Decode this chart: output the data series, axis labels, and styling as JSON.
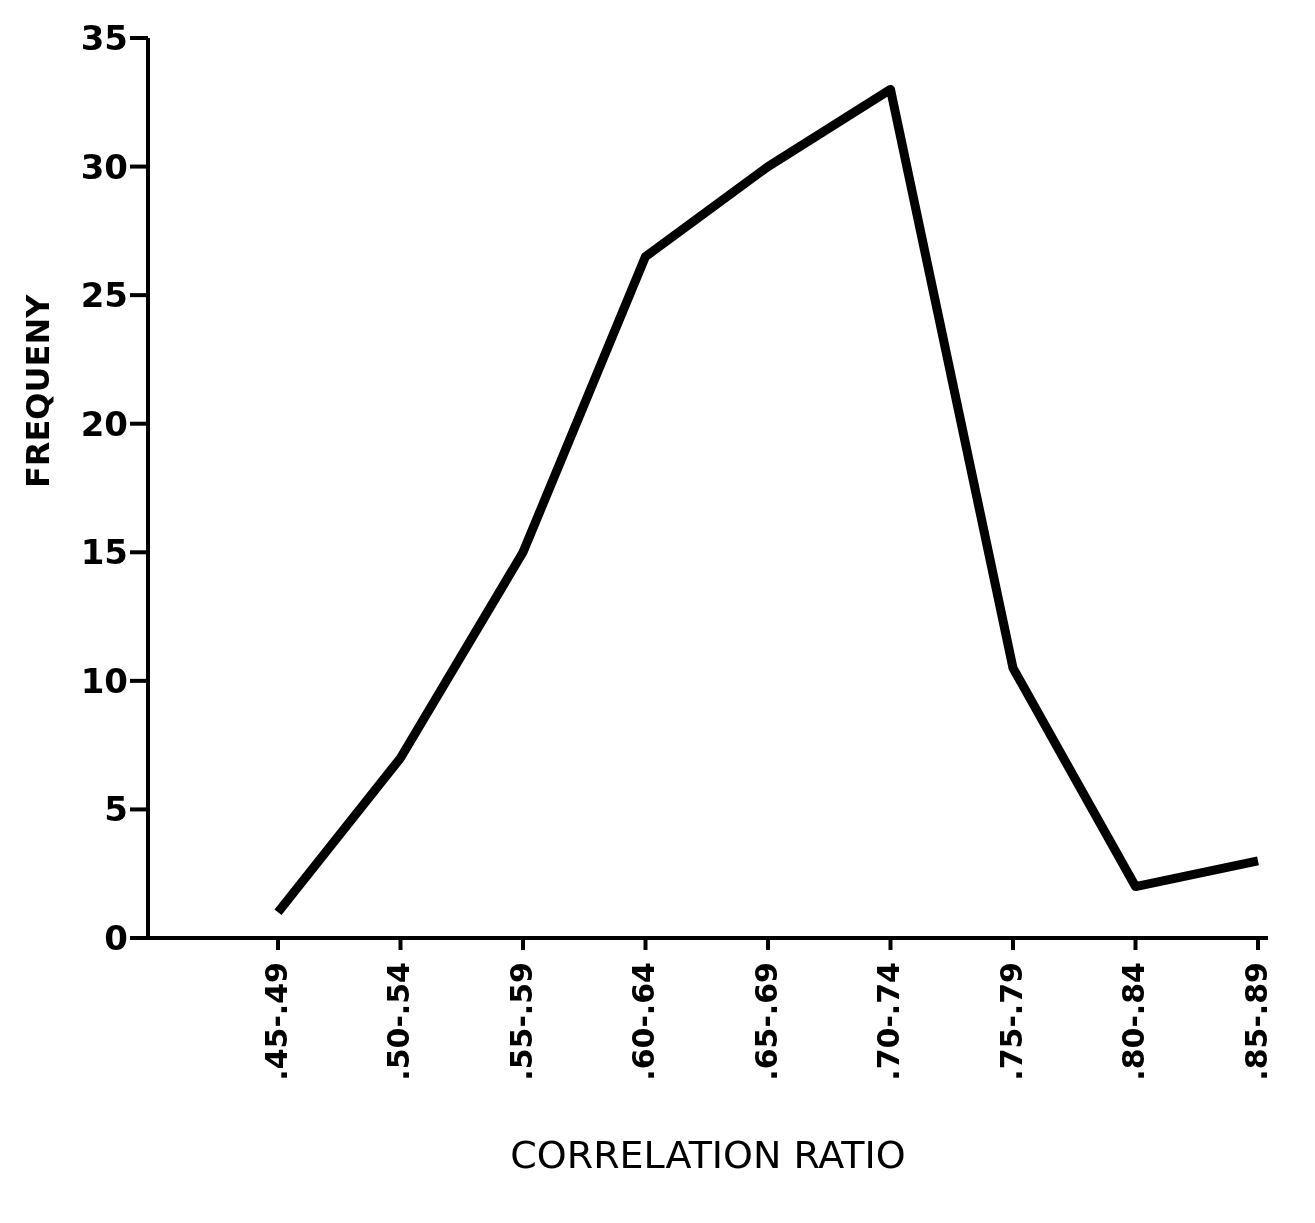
{
  "chart_data": {
    "type": "line",
    "xlabel": "CORRELATION RATIO",
    "ylabel": "FREQUENY",
    "categories": [
      ".45-.49",
      ".50-.54",
      ".55-.59",
      ".60-.64",
      ".65-.69",
      ".70-.74",
      ".75-.79",
      ".80-.84",
      ".85-.89"
    ],
    "values": [
      1,
      7,
      15,
      26.5,
      30,
      33,
      10.5,
      2,
      3
    ],
    "color": "#000000",
    "ylim": [
      0,
      35
    ],
    "yticks": [
      0,
      5,
      10,
      15,
      20,
      25,
      30,
      35
    ],
    "grid": false,
    "marker": "none",
    "line_style": "solid"
  }
}
